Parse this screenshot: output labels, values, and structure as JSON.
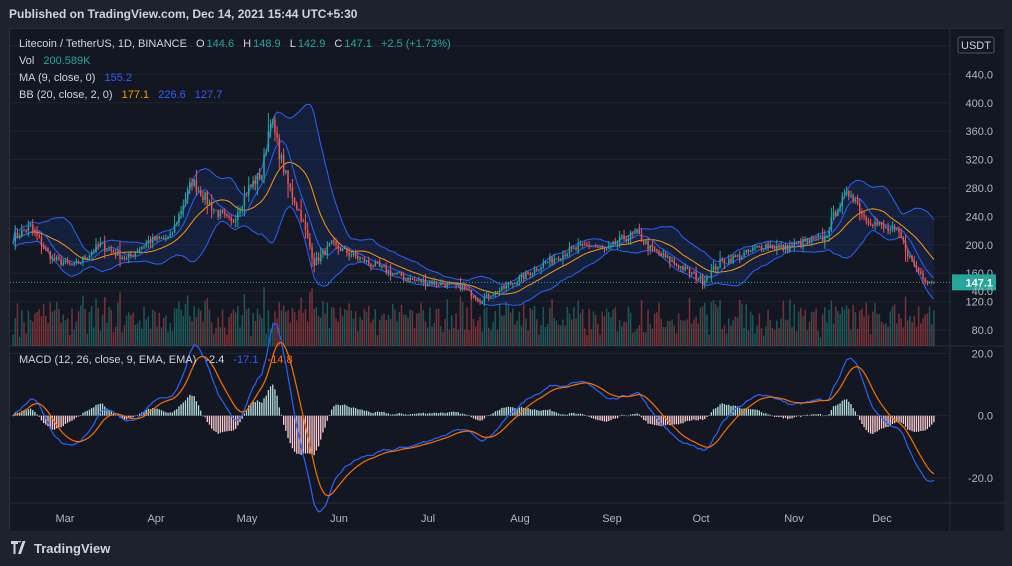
{
  "published": "Published on TradingView.com, Dec 14, 2021 15:44 UTC+5:30",
  "brand": "TradingView",
  "colors": {
    "up": "#26a69a",
    "down": "#ef5350",
    "ma": "#2962ff",
    "bb_mid": "#ff9800",
    "bb_band": "#2962ff",
    "macd": "#2962ff",
    "signal": "#ff6d00",
    "text": "#b2b5be",
    "bg": "#131722"
  },
  "legend": {
    "symbol": "Litecoin / TetherUS, 1D, BINANCE",
    "o_label": "O",
    "o": "144.6",
    "h_label": "H",
    "h": "148.9",
    "l_label": "L",
    "l": "142.9",
    "c_label": "C",
    "c": "147.1",
    "change": "+2.5 (+1.73%)",
    "vol_label": "Vol",
    "vol": "200.589K",
    "ma_label": "MA (9, close, 0)",
    "ma": "155.2",
    "bb_label": "BB (20, close, 2, 0)",
    "bb_mid": "177.1",
    "bb_upper": "226.6",
    "bb_lower": "127.7",
    "macd_label": "MACD (12, 26, close, 9, EMA, EMA)",
    "macd_hist": "-2.4",
    "macd": "-17.1",
    "macd_signal": "-14.8"
  },
  "currency": "USDT",
  "last_price": "147.1",
  "chart_data": [
    {
      "type": "candlestick",
      "title": "Litecoin / TetherUS, 1D, BINANCE",
      "ylim": [
        70,
        480
      ],
      "y_ticks": [
        "480.0",
        "440.0",
        "400.0",
        "360.0",
        "320.0",
        "280.0",
        "240.0",
        "200.0",
        "160.0",
        "120.0",
        "80.0"
      ],
      "x_ticks": [
        "Mar",
        "Apr",
        "May",
        "Jun",
        "Jul",
        "Aug",
        "Sep",
        "Oct",
        "Nov",
        "Dec"
      ],
      "close_anchors": [
        [
          0,
          210
        ],
        [
          8,
          225
        ],
        [
          18,
          180
        ],
        [
          28,
          170
        ],
        [
          40,
          200
        ],
        [
          52,
          180
        ],
        [
          62,
          205
        ],
        [
          72,
          210
        ],
        [
          82,
          290
        ],
        [
          92,
          250
        ],
        [
          100,
          230
        ],
        [
          108,
          280
        ],
        [
          114,
          300
        ],
        [
          118,
          380
        ],
        [
          122,
          330
        ],
        [
          126,
          285
        ],
        [
          132,
          240
        ],
        [
          138,
          175
        ],
        [
          146,
          200
        ],
        [
          156,
          185
        ],
        [
          166,
          170
        ],
        [
          174,
          160
        ],
        [
          184,
          150
        ],
        [
          196,
          145
        ],
        [
          206,
          140
        ],
        [
          214,
          122
        ],
        [
          224,
          138
        ],
        [
          234,
          155
        ],
        [
          244,
          175
        ],
        [
          254,
          190
        ],
        [
          264,
          200
        ],
        [
          272,
          192
        ],
        [
          280,
          210
        ],
        [
          286,
          215
        ],
        [
          292,
          195
        ],
        [
          300,
          180
        ],
        [
          308,
          165
        ],
        [
          316,
          150
        ],
        [
          324,
          175
        ],
        [
          334,
          185
        ],
        [
          344,
          200
        ],
        [
          354,
          195
        ],
        [
          364,
          205
        ],
        [
          372,
          210
        ],
        [
          378,
          255
        ],
        [
          384,
          275
        ],
        [
          390,
          240
        ],
        [
          398,
          225
        ],
        [
          406,
          215
        ],
        [
          412,
          175
        ],
        [
          418,
          152
        ],
        [
          422,
          147
        ]
      ],
      "volume_range": [
        0,
        55
      ],
      "ma_period": 9,
      "bb_period": 20,
      "last": 147.1
    },
    {
      "type": "line",
      "title": "MACD (12, 26, close, 9, EMA, EMA)",
      "ylim": [
        -35,
        40
      ],
      "y_ticks": [
        "40.0",
        "20.0",
        "0.0",
        "-20.0"
      ],
      "series": [
        {
          "name": "MACD",
          "color": "#2962ff"
        },
        {
          "name": "Signal",
          "color": "#ff6d00"
        },
        {
          "name": "Histogram",
          "color": "#26a69a"
        }
      ]
    }
  ]
}
